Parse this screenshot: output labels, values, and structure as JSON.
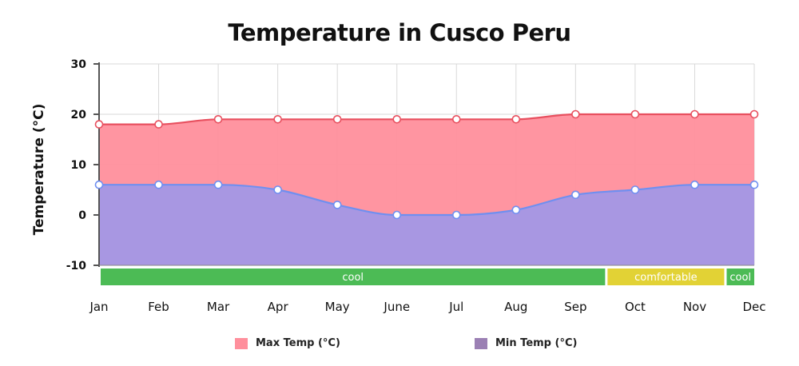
{
  "chart_data": {
    "type": "area",
    "title": "Temperature in Cusco Peru",
    "xlabel": "",
    "ylabel": "Temperature (°C)",
    "ylim": [
      -10,
      30
    ],
    "yticks": [
      30,
      20,
      10,
      0,
      -10
    ],
    "categories": [
      "Jan",
      "Feb",
      "Mar",
      "Apr",
      "May",
      "June",
      "Jul",
      "Aug",
      "Sep",
      "Oct",
      "Nov",
      "Dec"
    ],
    "series": [
      {
        "name": "Max Temp (°C)",
        "values": [
          18,
          18,
          19,
          19,
          19,
          19,
          19,
          19,
          20,
          20,
          20,
          20
        ],
        "color": "#ff8f9c",
        "line_color": "#e8505f"
      },
      {
        "name": "Min Temp (°C)",
        "values": [
          6,
          6,
          6,
          5,
          2,
          0,
          0,
          1,
          4,
          5,
          6,
          6
        ],
        "color": "#a397e6",
        "line_color": "#6f8ff0"
      }
    ],
    "comfort_bands": [
      {
        "label": "cool",
        "from": "Jan",
        "to": "Sep",
        "color": "#4cbb55"
      },
      {
        "label": "comfortable",
        "from": "Sep",
        "to": "Nov",
        "color": "#e2d235"
      },
      {
        "label": "cool",
        "from": "Nov",
        "to": "Dec",
        "color": "#4cbb55"
      }
    ],
    "grid": true,
    "legend_position": "bottom"
  }
}
